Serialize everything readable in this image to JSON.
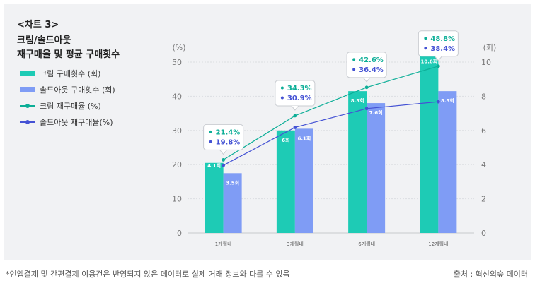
{
  "header": {
    "chart_no": "<차트 3>",
    "title": "크림/솔드아웃\n재구매율 및 평균 구매횟수"
  },
  "legend": [
    {
      "label": "크림 구매횟수 (회)",
      "kind": "bar",
      "color": "#1ecbb5"
    },
    {
      "label": "솔드아웃 구매횟수 (회)",
      "kind": "bar",
      "color": "#7f9cf5"
    },
    {
      "label": "크림 재구매율 (%)",
      "kind": "line",
      "color": "#0cae97"
    },
    {
      "label": "솔드아웃 재구매율(%)",
      "kind": "line",
      "color": "#4452d4"
    }
  ],
  "footer": {
    "note": "*인앱결제 및 간편결제 이용건은 반영되지 않은 데이터로 실제 거래 정보와 다를 수 있음",
    "source": "출처 : 혁신의숲 데이터"
  },
  "chart_data": {
    "type": "bar",
    "categories": [
      "1개월내",
      "3개월내",
      "6개월내",
      "12개월내"
    ],
    "y_left": {
      "unit_label": "(%)",
      "ylim": [
        0,
        50
      ],
      "ticks": [
        0,
        10,
        20,
        30,
        40,
        50
      ]
    },
    "y_right": {
      "unit_label": "(회)",
      "ylim": [
        0,
        10
      ],
      "ticks": [
        0,
        2,
        4,
        6,
        8,
        10
      ]
    },
    "bars": [
      {
        "name": "크림 구매횟수 (회)",
        "axis": "right",
        "color": "#1ecbb5",
        "values": [
          4.1,
          6,
          8.3,
          10.6
        ],
        "labels": [
          "4.1회",
          "6회",
          "8.3회",
          "10.6회"
        ]
      },
      {
        "name": "솔드아웃 구매횟수 (회)",
        "axis": "right",
        "color": "#7f9cf5",
        "values": [
          3.5,
          6.1,
          7.6,
          8.3
        ],
        "labels": [
          "3.5회",
          "6.1회",
          "7.6회",
          "8.3회"
        ]
      }
    ],
    "lines": [
      {
        "name": "크림 재구매율 (%)",
        "axis": "left",
        "color": "#0cae97",
        "values": [
          21.4,
          34.3,
          42.6,
          48.8
        ],
        "labels": [
          "21.4%",
          "34.3%",
          "42.6%",
          "48.8%"
        ]
      },
      {
        "name": "솔드아웃 재구매율(%)",
        "axis": "left",
        "color": "#4452d4",
        "values": [
          19.8,
          30.9,
          36.4,
          38.4
        ],
        "labels": [
          "19.8%",
          "30.9%",
          "36.4%",
          "38.4%"
        ]
      }
    ],
    "grid": true,
    "legend_position": "left"
  }
}
